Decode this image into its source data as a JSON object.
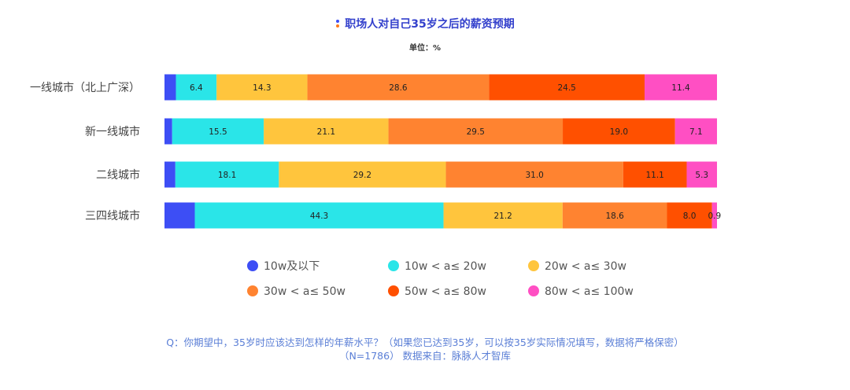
{
  "header": {
    "title": "职场人对自己35岁之后的薪资预期",
    "unit": "单位：%"
  },
  "footer": {
    "question": "Q：你期望中，35岁时应该达到怎样的年薪水平？（如果您已达到35岁，可以按35岁实际情况填写，数据将严格保密）",
    "source": "（N=1786）  数据来自：脉脉人才智库"
  },
  "chart_data": {
    "type": "bar",
    "orientation": "horizontal",
    "stacked": true,
    "title": "职场人对自己35岁之后的薪资预期",
    "unit": "%",
    "xlim": [
      0,
      100
    ],
    "grid": false,
    "legend_position": "bottom",
    "categories": [
      "一线城市（北上广深）",
      "新一线城市",
      "二线城市",
      "三四线城市"
    ],
    "series": [
      {
        "name": "10w及以下",
        "color": "#3d4ef5",
        "values": [
          1.8,
          1.3,
          1.9,
          5.4
        ],
        "labels": [
          "",
          "",
          "",
          ""
        ]
      },
      {
        "name": "10w < a≤ 20w",
        "color": "#2ae5e8",
        "values": [
          6.4,
          15.5,
          18.1,
          44.3
        ],
        "labels": [
          "6.4",
          "15.5",
          "18.1",
          "44.3"
        ]
      },
      {
        "name": "20w < a≤ 30w",
        "color": "#ffc53d",
        "values": [
          14.3,
          21.1,
          29.2,
          21.2
        ],
        "labels": [
          "14.3",
          "21.1",
          "29.2",
          "21.2"
        ]
      },
      {
        "name": "30w < a≤ 50w",
        "color": "#ff8330",
        "values": [
          28.6,
          29.5,
          31.0,
          18.6
        ],
        "labels": [
          "28.6",
          "29.5",
          "31.0",
          "18.6"
        ]
      },
      {
        "name": "50w < a≤ 80w",
        "color": "#ff5000",
        "values": [
          24.5,
          19.0,
          11.1,
          8.0
        ],
        "labels": [
          "24.5",
          "19.0",
          "11.1",
          "8.0"
        ]
      },
      {
        "name": "80w < a≤ 100w",
        "color": "#ff4fc3",
        "values": [
          11.4,
          7.1,
          5.3,
          0.9
        ],
        "labels": [
          "11.4",
          "7.1",
          "5.3",
          "0.9"
        ]
      }
    ]
  }
}
